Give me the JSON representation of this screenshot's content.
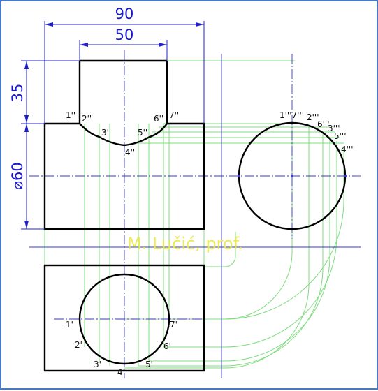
{
  "dimensions": {
    "width_90": "90",
    "width_50": "50",
    "height_35": "35",
    "diameter_60": "⌀60"
  },
  "watermark": "M. Lučić, prof.",
  "front_view_labels": [
    "1''",
    "2''",
    "3''",
    "4''",
    "5''",
    "6''",
    "7''"
  ],
  "side_view_labels": [
    "1'''7'''",
    "2'''",
    "6'''",
    "3'''",
    "5'''",
    "4'''"
  ],
  "top_view_labels": [
    "1'",
    "2'",
    "3'",
    "4'",
    "5'",
    "6'",
    "7'"
  ],
  "colors": {
    "object_line": "#000000",
    "center_line": "#3a3ac8",
    "construction_line": "#7fdc7f",
    "dimension": "#1a1ad0",
    "frame": "#4a78c0",
    "watermark": "#ece84a"
  }
}
